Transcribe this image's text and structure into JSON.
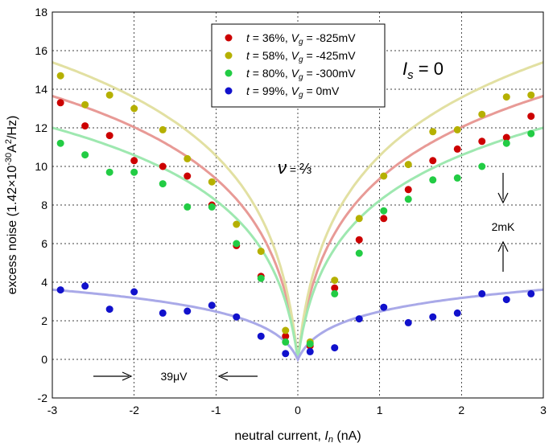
{
  "chart_data": {
    "type": "scatter",
    "xlabel": "neutral current, I_n (nA)",
    "xlabel_main": "neutral current, ",
    "xlabel_var": "I",
    "xlabel_sub": "n",
    "xlabel_unit": " (nA)",
    "ylabel": "excess noise (1.42×10^-30 A^2/Hz)",
    "ylabel_pre": "excess noise (1.42×10",
    "ylabel_exp1": "-30",
    "ylabel_mid": "A",
    "ylabel_exp2": "2",
    "ylabel_post": "/Hz)",
    "xlim": [
      -3,
      3
    ],
    "ylim": [
      -2,
      18
    ],
    "xticks": [
      -3,
      -2,
      -1,
      0,
      1,
      2,
      3
    ],
    "yticks": [
      -2,
      0,
      2,
      4,
      6,
      8,
      10,
      12,
      14,
      16,
      18
    ],
    "grid": "dashed",
    "legend_position": "top-center",
    "series": [
      {
        "name": "t = 36%, Vg = -825mV",
        "legend_t": "t",
        "legend_eq1": " = 36%, ",
        "legend_v": "V",
        "legend_sub": "g",
        "legend_eq2": " = -825mV",
        "color": "#cc0000",
        "curve_color": "#e89a96",
        "points": [
          [
            -2.9,
            13.3
          ],
          [
            -2.6,
            12.1
          ],
          [
            -2.3,
            11.6
          ],
          [
            -2.0,
            10.3
          ],
          [
            -1.65,
            10.0
          ],
          [
            -1.35,
            9.5
          ],
          [
            -1.05,
            8.0
          ],
          [
            -0.75,
            5.9
          ],
          [
            -0.45,
            4.3
          ],
          [
            -0.15,
            1.2
          ],
          [
            0.15,
            0.7
          ],
          [
            0.45,
            3.7
          ],
          [
            0.75,
            6.2
          ],
          [
            1.05,
            7.3
          ],
          [
            1.35,
            8.8
          ],
          [
            1.65,
            10.3
          ],
          [
            1.95,
            10.9
          ],
          [
            2.25,
            11.3
          ],
          [
            2.55,
            11.5
          ],
          [
            2.85,
            12.6
          ]
        ],
        "curve_a": 7.8
      },
      {
        "name": "t = 58%, Vg = -425mV",
        "legend_t": "t",
        "legend_eq1": " = 58%, ",
        "legend_v": "V",
        "legend_sub": "g",
        "legend_eq2": " = -425mV",
        "color": "#b5b000",
        "curve_color": "#e2e0a2",
        "points": [
          [
            -2.9,
            14.7
          ],
          [
            -2.6,
            13.2
          ],
          [
            -2.3,
            13.7
          ],
          [
            -2.0,
            13.0
          ],
          [
            -1.65,
            11.9
          ],
          [
            -1.35,
            10.4
          ],
          [
            -1.05,
            9.2
          ],
          [
            -0.75,
            7.0
          ],
          [
            -0.45,
            5.6
          ],
          [
            -0.15,
            1.5
          ],
          [
            0.15,
            0.9
          ],
          [
            0.45,
            4.1
          ],
          [
            0.75,
            7.3
          ],
          [
            1.05,
            9.5
          ],
          [
            1.35,
            10.1
          ],
          [
            1.65,
            11.8
          ],
          [
            1.95,
            11.9
          ],
          [
            2.25,
            12.7
          ],
          [
            2.55,
            13.6
          ],
          [
            2.85,
            13.7
          ]
        ],
        "curve_a": 8.9
      },
      {
        "name": "t = 80%, Vg = -300mV",
        "legend_t": "t",
        "legend_eq1": " = 80%, ",
        "legend_v": "V",
        "legend_sub": "g",
        "legend_eq2": " = -300mV",
        "color": "#22cc44",
        "curve_color": "#9ee8b0",
        "points": [
          [
            -2.9,
            11.2
          ],
          [
            -2.6,
            10.6
          ],
          [
            -2.3,
            9.7
          ],
          [
            -2.0,
            9.7
          ],
          [
            -1.65,
            9.1
          ],
          [
            -1.35,
            7.9
          ],
          [
            -1.05,
            7.9
          ],
          [
            -0.75,
            6.0
          ],
          [
            -0.45,
            4.2
          ],
          [
            -0.15,
            0.9
          ],
          [
            0.15,
            0.8
          ],
          [
            0.45,
            3.4
          ],
          [
            0.75,
            5.5
          ],
          [
            1.05,
            7.7
          ],
          [
            1.35,
            8.3
          ],
          [
            1.65,
            9.3
          ],
          [
            1.95,
            9.4
          ],
          [
            2.25,
            10.0
          ],
          [
            2.55,
            11.2
          ],
          [
            2.85,
            11.7
          ]
        ],
        "curve_a": 6.9
      },
      {
        "name": "t = 99%, Vg = 0mV",
        "legend_t": "t",
        "legend_eq1": " = 99%, ",
        "legend_v": "V",
        "legend_sub": "g",
        "legend_eq2": " =      0mV",
        "color": "#1111cc",
        "curve_color": "#a9a9e8",
        "points": [
          [
            -2.9,
            3.6
          ],
          [
            -2.6,
            3.8
          ],
          [
            -2.3,
            2.6
          ],
          [
            -2.0,
            3.5
          ],
          [
            -1.65,
            2.4
          ],
          [
            -1.35,
            2.5
          ],
          [
            -1.05,
            2.8
          ],
          [
            -0.75,
            2.2
          ],
          [
            -0.45,
            1.2
          ],
          [
            -0.15,
            0.3
          ],
          [
            0.15,
            0.4
          ],
          [
            0.45,
            0.6
          ],
          [
            0.75,
            2.1
          ],
          [
            1.05,
            2.7
          ],
          [
            1.35,
            1.9
          ],
          [
            1.65,
            2.2
          ],
          [
            1.95,
            2.4
          ],
          [
            2.25,
            3.4
          ],
          [
            2.55,
            3.1
          ],
          [
            2.85,
            3.4
          ]
        ],
        "curve_a": 2.1
      }
    ],
    "annotations": {
      "is_label_var": "I",
      "is_label_sub": "s",
      "is_label_eq": " = 0",
      "nu_label_var": "ν",
      "nu_label_eq": " = ",
      "nu_frac": "⅔",
      "scale_label": "2mK",
      "width_label": "39μV"
    }
  }
}
